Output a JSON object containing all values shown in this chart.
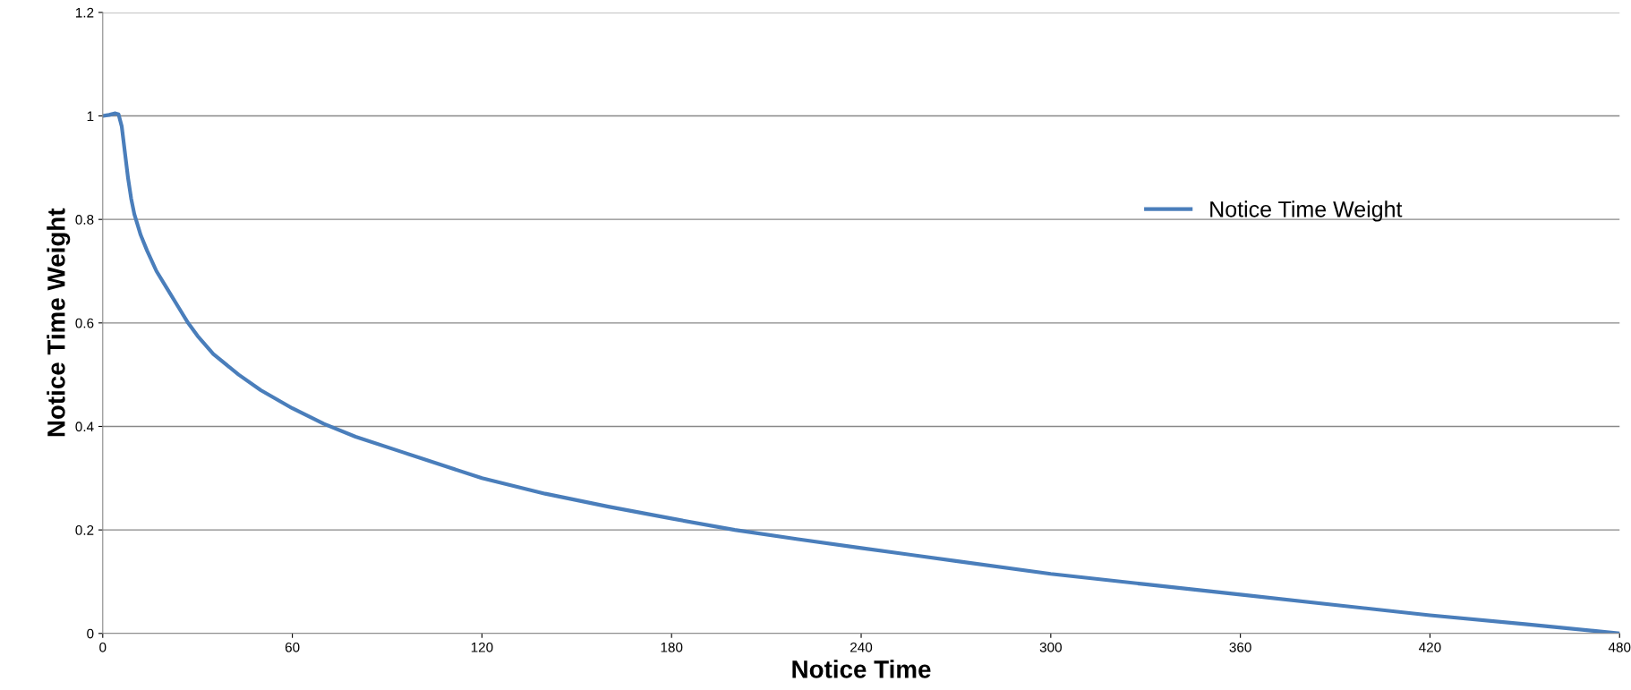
{
  "chart_data": {
    "type": "line",
    "xlabel": "Notice Time",
    "ylabel": "Notice Time Weight",
    "xlim": [
      0,
      480
    ],
    "xticks": [
      0,
      60,
      120,
      180,
      240,
      300,
      360,
      420,
      480
    ],
    "ylim": [
      0,
      1.2
    ],
    "yticks": [
      0,
      0.2,
      0.4,
      0.6,
      0.8,
      1,
      1.2
    ],
    "grid": "y",
    "legend": "right",
    "series": [
      {
        "name": "Notice Time Weight",
        "color": "#4a7ebb",
        "x": [
          0,
          2,
          4,
          5,
          6,
          7,
          8,
          9,
          10,
          12,
          14,
          17,
          20,
          24,
          27,
          30,
          35,
          43,
          50,
          60,
          70,
          80,
          95,
          110,
          120,
          140,
          160,
          180,
          200,
          220,
          240,
          270,
          300,
          330,
          360,
          390,
          420,
          450,
          480
        ],
        "values": [
          1.0,
          1.002,
          1.005,
          1.003,
          0.98,
          0.93,
          0.88,
          0.84,
          0.81,
          0.77,
          0.74,
          0.7,
          0.67,
          0.63,
          0.6,
          0.575,
          0.54,
          0.5,
          0.47,
          0.435,
          0.405,
          0.38,
          0.35,
          0.32,
          0.3,
          0.27,
          0.245,
          0.222,
          0.2,
          0.182,
          0.165,
          0.14,
          0.115,
          0.095,
          0.075,
          0.055,
          0.035,
          0.018,
          0.0
        ]
      }
    ]
  }
}
